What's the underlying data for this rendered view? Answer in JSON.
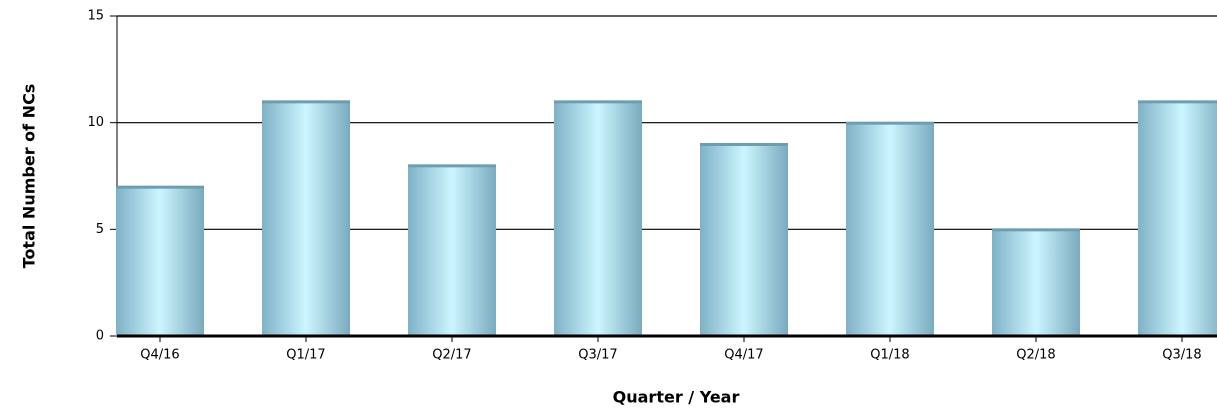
{
  "chart_data": {
    "type": "bar",
    "x_label": "Quarter / Year",
    "y_label": "Total Number of NCs",
    "categories": [
      "Q4/16",
      "Q1/17",
      "Q2/17",
      "Q3/17",
      "Q4/17",
      "Q1/18",
      "Q2/18",
      "Q3/18"
    ],
    "values": [
      7,
      11,
      8,
      11,
      9,
      10,
      5,
      11
    ],
    "color": "#a8dcec",
    "ylim": [
      0,
      15
    ],
    "yticks": [
      0,
      5,
      10,
      15
    ],
    "grid": true
  }
}
